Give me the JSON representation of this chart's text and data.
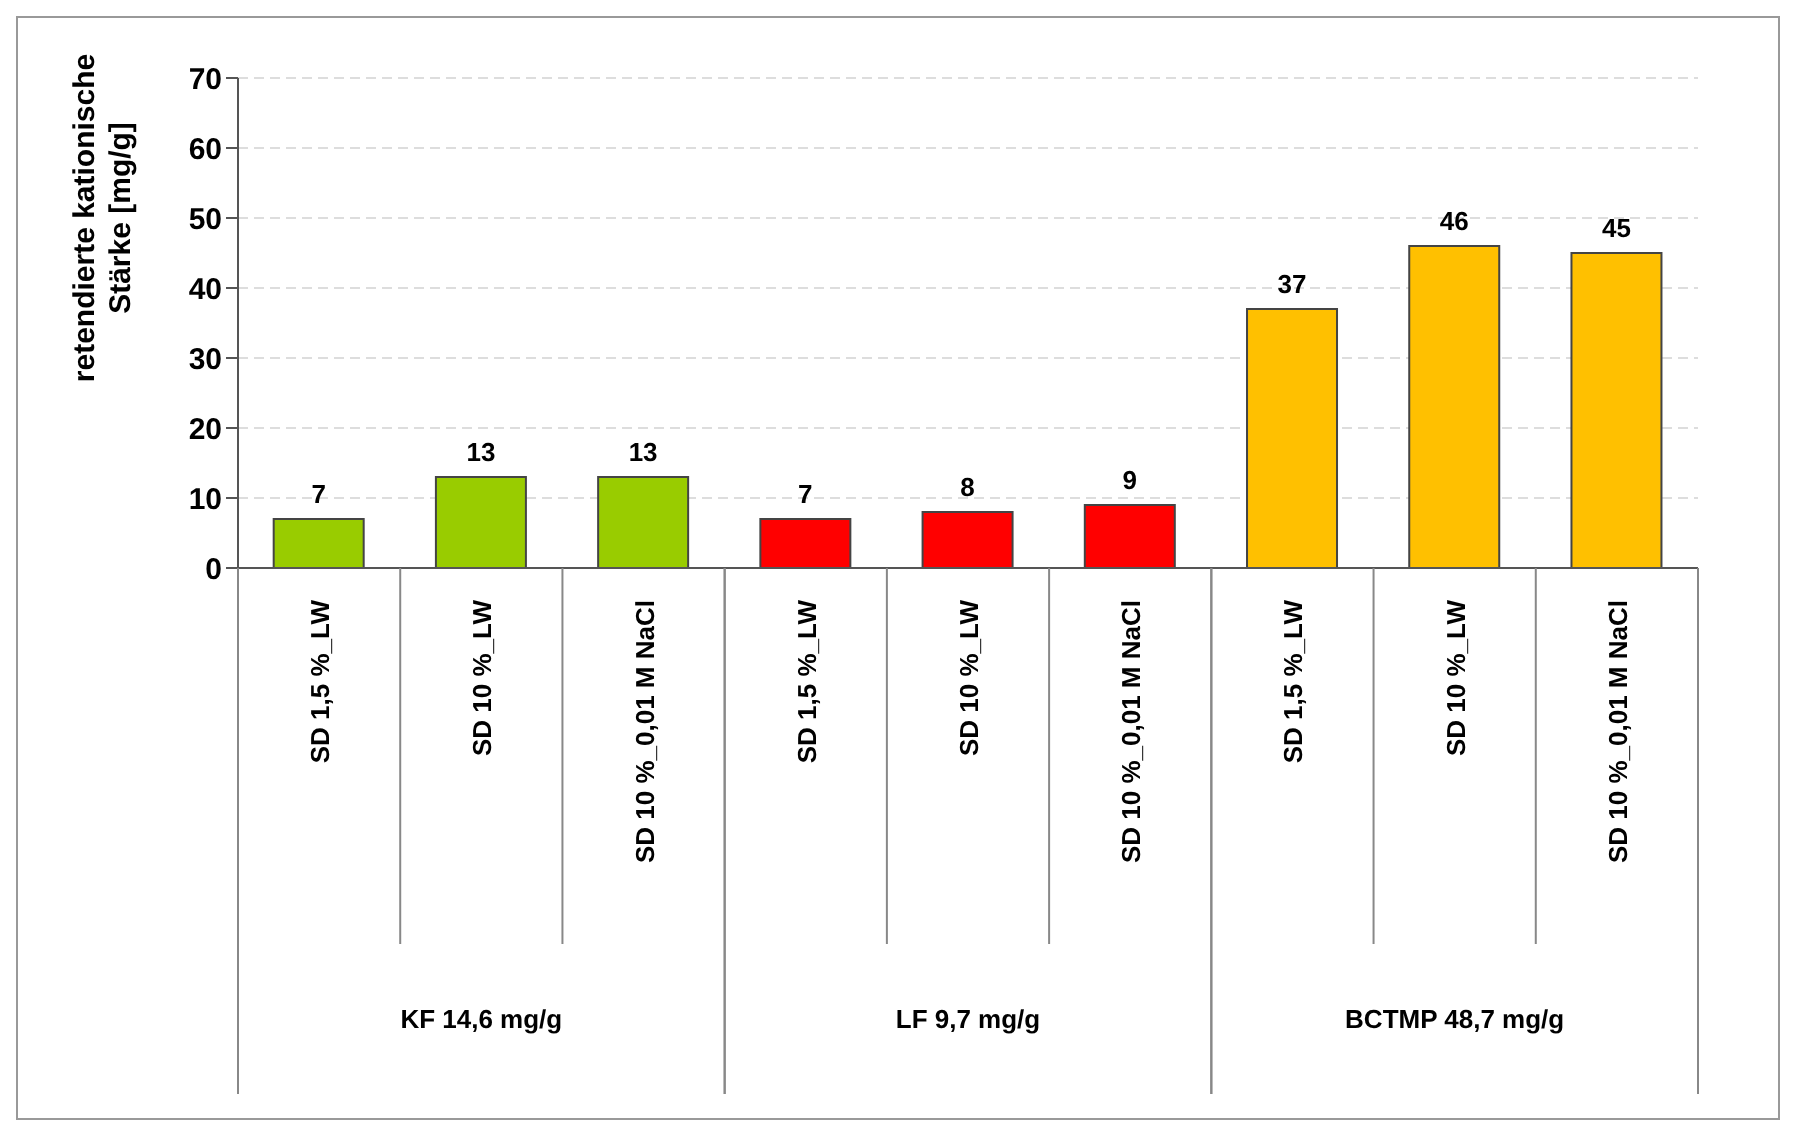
{
  "chart_data": {
    "type": "bar",
    "stacked": true,
    "ylabel": "retendierte kationische Stärke [mg/g]",
    "categories": [
      "SD 1,5 %_LW",
      "SD 10 %_LW",
      "SD 10 %_0,01 M NaCl",
      "SD 1,5 %_LW",
      "SD 10 %_LW",
      "SD 10 %_0,01 M NaCl",
      "SD 1,5 %_LW",
      "SD 10 %_LW",
      "SD 10 %_0,01 M NaCl"
    ],
    "series": [
      {
        "color": "#99cc00",
        "values": [
          7,
          13,
          13,
          null,
          null,
          null,
          null,
          null,
          null
        ]
      },
      {
        "color": "#ff0000",
        "values": [
          null,
          null,
          null,
          7,
          8,
          9,
          null,
          null,
          null
        ]
      },
      {
        "color": "#ffc000",
        "values": [
          null,
          null,
          null,
          null,
          null,
          null,
          37,
          46,
          45
        ]
      }
    ],
    "ylim": [
      0,
      70
    ],
    "yticks": [
      0,
      10,
      20,
      30,
      40,
      50,
      60,
      70
    ],
    "grid": "y",
    "data_labels": true,
    "annotations": [
      "KF 14,6 mg/g",
      "LF 9,7 mg/g",
      "BCTMP 48,7 mg/g"
    ]
  }
}
